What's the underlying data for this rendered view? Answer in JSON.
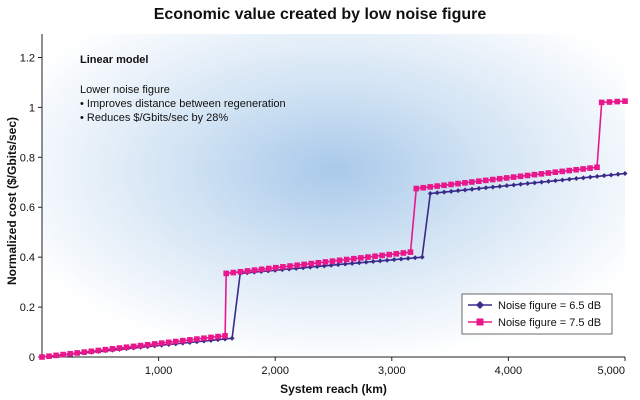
{
  "chart_data": {
    "type": "line",
    "title": "Economic value created by low noise figure",
    "xlabel": "System reach (km)",
    "ylabel": "Normalized cost ($/Gbits/sec)",
    "xlim": [
      0,
      5000
    ],
    "ylim": [
      0,
      1.3
    ],
    "x_ticks": [
      "1,000",
      "2,000",
      "3,000",
      "4,000",
      "5,000"
    ],
    "y_ticks": [
      "0",
      "0.2",
      "0.4",
      "0.6",
      "0.8",
      "1",
      "1.2"
    ],
    "grid": false,
    "legend_position": "bottom-right",
    "annotations": {
      "heading": "Linear model",
      "line1": "Lower noise figure",
      "line2": "• Improves distance between regeneration",
      "line3": "• Reduces $/Gbits/sec by 28%"
    },
    "series": [
      {
        "name": "Noise figure = 6.5 dB",
        "color": "#3a2a8a",
        "marker": "diamond",
        "segments": [
          [
            [
              0,
              0
            ],
            [
              1630,
              0.075
            ]
          ],
          [
            [
              1630,
              0.075
            ],
            [
              1700,
              0.335
            ]
          ],
          [
            [
              1700,
              0.335
            ],
            [
              3260,
              0.4
            ]
          ],
          [
            [
              3260,
              0.4
            ],
            [
              3330,
              0.655
            ]
          ],
          [
            [
              3330,
              0.655
            ],
            [
              5000,
              0.735
            ]
          ]
        ]
      },
      {
        "name": "Noise figure = 7.5 dB",
        "color": "#e8188c",
        "marker": "square",
        "segments": [
          [
            [
              0,
              0
            ],
            [
              1570,
              0.085
            ]
          ],
          [
            [
              1570,
              0.085
            ],
            [
              1580,
              0.335
            ]
          ],
          [
            [
              1580,
              0.335
            ],
            [
              3160,
              0.42
            ]
          ],
          [
            [
              3160,
              0.42
            ],
            [
              3210,
              0.675
            ]
          ],
          [
            [
              3210,
              0.675
            ],
            [
              4760,
              0.76
            ]
          ],
          [
            [
              4760,
              0.76
            ],
            [
              4800,
              1.02
            ]
          ],
          [
            [
              4800,
              1.02
            ],
            [
              5000,
              1.025
            ]
          ]
        ]
      }
    ]
  }
}
